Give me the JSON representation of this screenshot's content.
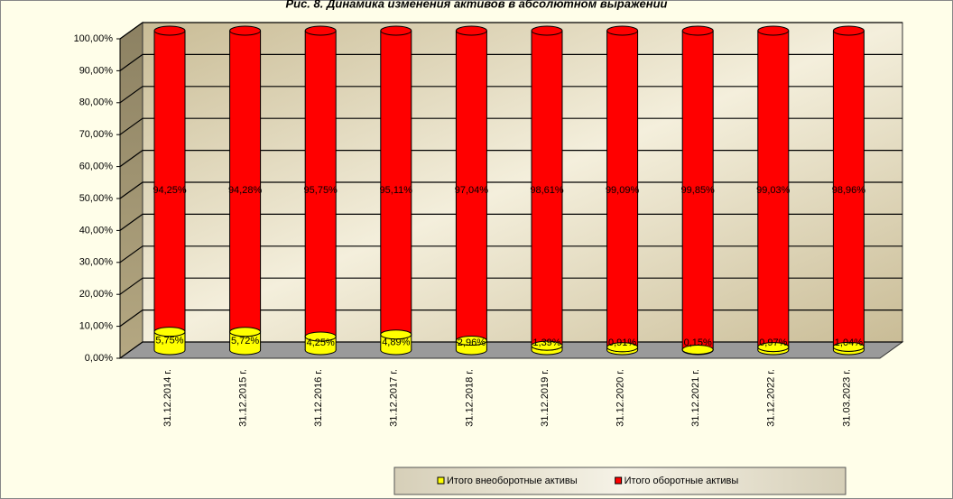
{
  "chart_data": {
    "type": "bar3d-stacked",
    "title": "Рис. 8. Динамика изменения активов в абсолютном выражении",
    "categories": [
      "31.12.2014 г.",
      "31.12.2015 г.",
      "31.12.2016 г.",
      "31.12.2017 г.",
      "31.12.2018 г.",
      "31.12.2019 г.",
      "31.12.2020 г.",
      "31.12.2021 г.",
      "31.12.2022 г.",
      "31.03.2023 г."
    ],
    "series": [
      {
        "name": "Итого внеоборотные активы",
        "color": "#ffff00",
        "values": [
          5.75,
          5.72,
          4.25,
          4.89,
          2.96,
          1.39,
          0.91,
          0.15,
          0.97,
          1.04
        ],
        "value_labels": [
          "5,75%",
          "5,72%",
          "4,25%",
          "4,89%",
          "2,96%",
          "1,39%",
          "0,91%",
          "0,15%",
          "0,97%",
          "1,04%"
        ]
      },
      {
        "name": "Итого оборотные активы",
        "color": "#ff0000",
        "values": [
          94.25,
          94.28,
          95.75,
          95.11,
          97.04,
          98.61,
          99.09,
          99.85,
          99.03,
          98.96
        ],
        "value_labels": [
          "94,25%",
          "94,28%",
          "95,75%",
          "95,11%",
          "97,04%",
          "98,61%",
          "99,09%",
          "99,85%",
          "99,03%",
          "98,96%"
        ]
      }
    ],
    "ylim": [
      0,
      100
    ],
    "yticks": [
      {
        "value": 0,
        "label": "0,00%"
      },
      {
        "value": 10,
        "label": "10,00%"
      },
      {
        "value": 20,
        "label": "20,00%"
      },
      {
        "value": 30,
        "label": "30,00%"
      },
      {
        "value": 40,
        "label": "40,00%"
      },
      {
        "value": 50,
        "label": "50,00%"
      },
      {
        "value": 60,
        "label": "60,00%"
      },
      {
        "value": 70,
        "label": "70,00%"
      },
      {
        "value": 80,
        "label": "80,00%"
      },
      {
        "value": 90,
        "label": "90,00%"
      },
      {
        "value": 100,
        "label": "100,00%"
      }
    ],
    "grid": true,
    "legend": "bottom"
  }
}
